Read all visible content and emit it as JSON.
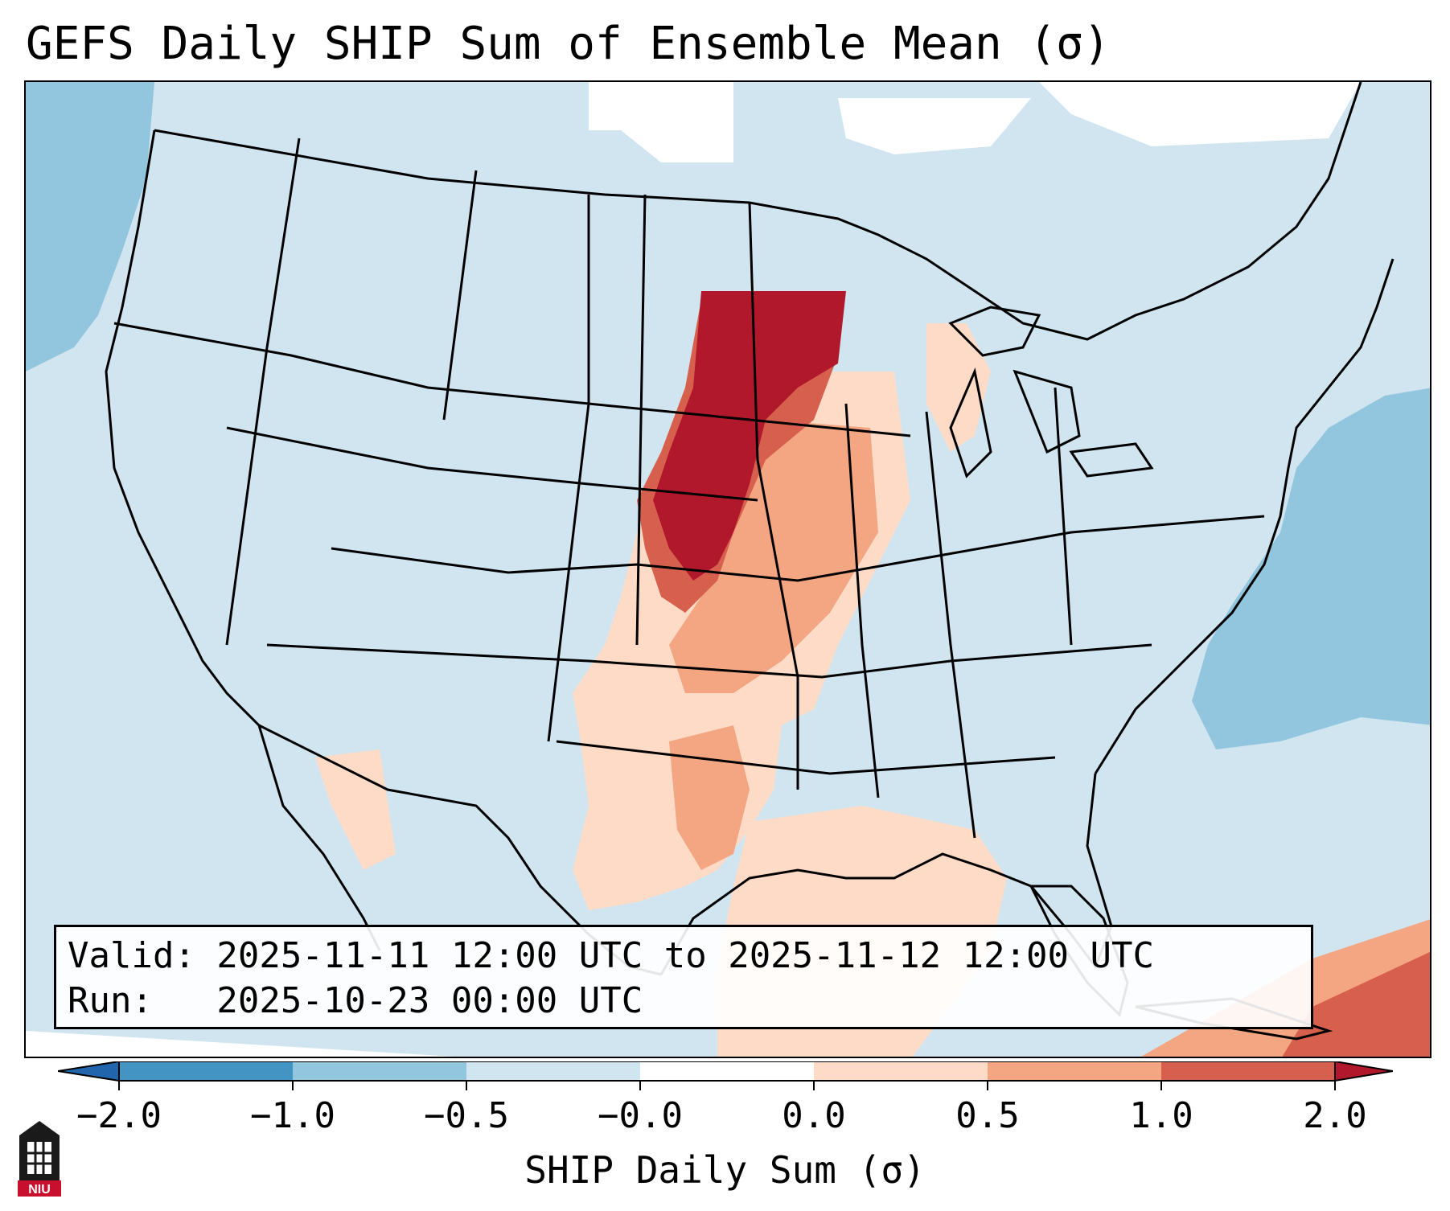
{
  "title": "GEFS Daily SHIP Sum of Ensemble Mean (σ)",
  "info": {
    "valid_line": "Valid: 2025-11-11 12:00 UTC to 2025-11-12 12:00 UTC",
    "run_line": "Run:   2025-10-23 00:00 UTC"
  },
  "colorbar": {
    "label": "SHIP Daily Sum (σ)",
    "ticks": [
      "−2.0",
      "−1.0",
      "−0.5",
      "−0.0",
      "0.0",
      "0.5",
      "1.0",
      "2.0"
    ],
    "colors": [
      "#2166ac",
      "#4393c3",
      "#92c5de",
      "#d1e5f0",
      "#ffffff",
      "#fddbc7",
      "#f4a582",
      "#d6604d",
      "#b2182b"
    ],
    "extend": "both"
  },
  "logo": {
    "text": "NIU",
    "icon": "university-building-icon",
    "color": "#c8102e"
  },
  "map": {
    "projection": "Lambert conformal, CONUS",
    "base_color": "#d1e5f0",
    "highlight_region": "Northern and Central Plains maxima exceeding 2.0 sigma"
  }
}
